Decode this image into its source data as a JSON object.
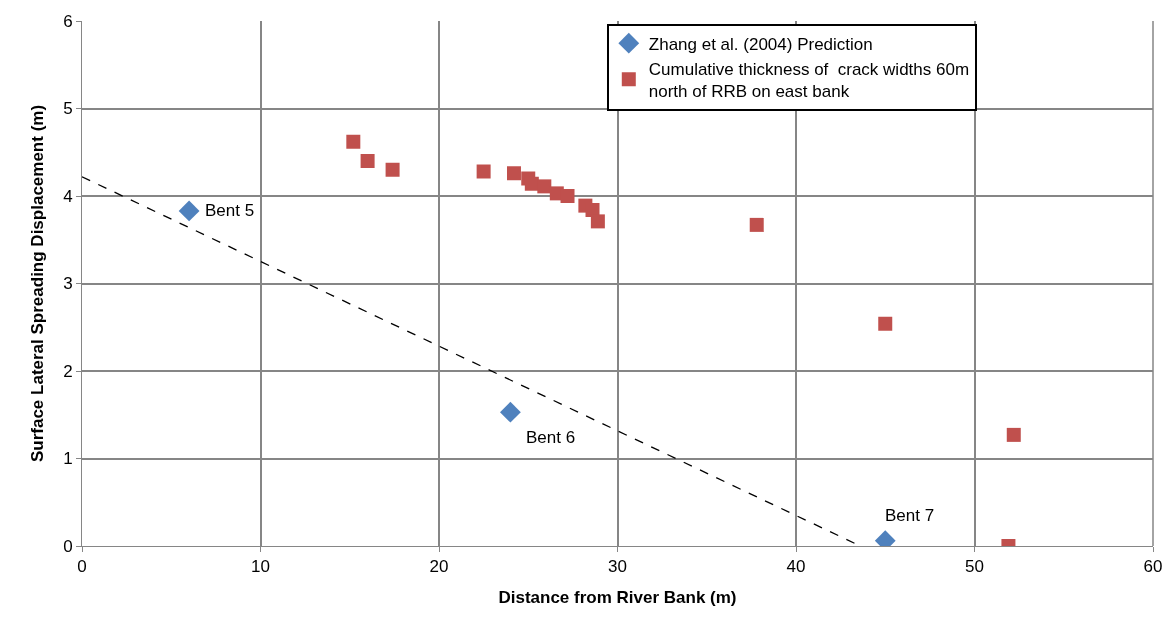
{
  "chart_data": {
    "type": "scatter",
    "xlabel": "Distance from River Bank (m)",
    "ylabel": "Surface Lateral Spreading Displacement (m)",
    "xlim": [
      0,
      60
    ],
    "xticks": [
      0,
      10,
      20,
      30,
      40,
      50,
      60
    ],
    "ylim": [
      0,
      6
    ],
    "yticks": [
      0,
      1,
      2,
      3,
      4,
      5,
      6
    ],
    "grid": true,
    "legend": "top right",
    "series": [
      {
        "name": "Zhang et al. (2004) Prediction",
        "color": "#4f81bd",
        "marker": "diamond",
        "x": [
          6.0,
          24.0,
          45.0
        ],
        "values": [
          3.83,
          1.53,
          0.06
        ]
      },
      {
        "name": "Cumulative thickness of  crack widths 60m north of RRB on east bank",
        "color": "#c0504d",
        "marker": "square",
        "x": [
          15.2,
          16.0,
          17.4,
          22.5,
          24.2,
          25.0,
          25.2,
          25.9,
          26.6,
          27.2,
          28.2,
          28.6,
          28.9,
          37.8,
          45.0,
          52.2,
          51.9
        ],
        "values": [
          4.62,
          4.4,
          4.3,
          4.28,
          4.26,
          4.2,
          4.14,
          4.11,
          4.03,
          4.0,
          3.89,
          3.84,
          3.71,
          3.67,
          2.54,
          1.27,
          0.0
        ]
      },
      {
        "type": "line",
        "color": "#000000",
        "marker": "none",
        "line_style": "dashed",
        "x": [
          0,
          43.6
        ],
        "values": [
          4.22,
          0
        ]
      }
    ],
    "annotations": [
      {
        "text": "Bent 5",
        "x": 6.0,
        "y": 3.83
      },
      {
        "text": "Bent 6",
        "x": 24.0,
        "y": 1.53
      },
      {
        "text": "Bent 7",
        "x": 45.0,
        "y": 0.06
      }
    ]
  }
}
